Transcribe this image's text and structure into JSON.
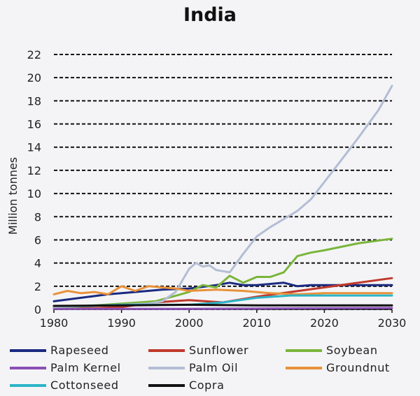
{
  "chart_data": {
    "type": "line",
    "title": "India",
    "ylabel": "Million tonnes",
    "xlabel": "",
    "xlim": [
      1980,
      2030
    ],
    "ylim": [
      0,
      22
    ],
    "xticks": [
      1980,
      1990,
      2000,
      2010,
      2020,
      2030
    ],
    "yticks": [
      0,
      2,
      4,
      6,
      8,
      10,
      12,
      14,
      16,
      18,
      20,
      22
    ],
    "grid": "horizontal dashed",
    "legend_position": "bottom",
    "series": [
      {
        "name": "Rapeseed",
        "color": "#1a2a80",
        "x": [
          1980,
          1984,
          1988,
          1992,
          1996,
          2000,
          2004,
          2006,
          2008,
          2010,
          2014,
          2016,
          2018,
          2020,
          2025,
          2030
        ],
        "y": [
          0.7,
          1.0,
          1.3,
          1.5,
          1.7,
          1.8,
          2.1,
          2.3,
          2.1,
          2.1,
          2.3,
          2.0,
          2.1,
          2.1,
          2.1,
          2.1
        ]
      },
      {
        "name": "Sunflower",
        "color": "#c0392b",
        "x": [
          1980,
          1986,
          1990,
          1995,
          2000,
          2005,
          2010,
          2015,
          2020,
          2025,
          2030
        ],
        "y": [
          0.1,
          0.1,
          0.2,
          0.6,
          0.8,
          0.6,
          1.1,
          1.5,
          1.9,
          2.3,
          2.7
        ]
      },
      {
        "name": "Soybean",
        "color": "#7ab53a",
        "x": [
          1980,
          1985,
          1990,
          1995,
          2000,
          2002,
          2004,
          2006,
          2008,
          2010,
          2012,
          2014,
          2016,
          2018,
          2020,
          2025,
          2030
        ],
        "y": [
          0.1,
          0.3,
          0.5,
          0.7,
          1.5,
          2.1,
          1.9,
          2.9,
          2.3,
          2.8,
          2.8,
          3.2,
          4.6,
          4.9,
          5.1,
          5.7,
          6.1
        ]
      },
      {
        "name": "Palm Kernel",
        "color": "#8a4fb5",
        "x": [
          1980,
          1990,
          2000,
          2010,
          2020,
          2030
        ],
        "y": [
          0.05,
          0.05,
          0.05,
          0.08,
          0.1,
          0.12
        ]
      },
      {
        "name": "Palm Oil",
        "color": "#b3bdd4",
        "x": [
          1980,
          1985,
          1990,
          1994,
          1996,
          1998,
          2000,
          2001,
          2002,
          2003,
          2004,
          2005,
          2006,
          2008,
          2010,
          2012,
          2014,
          2016,
          2018,
          2020,
          2022,
          2025,
          2028,
          2030
        ],
        "y": [
          0.2,
          0.3,
          0.4,
          0.5,
          0.7,
          1.5,
          3.5,
          4.0,
          3.7,
          3.8,
          3.4,
          3.3,
          3.2,
          4.8,
          6.3,
          7.1,
          7.8,
          8.5,
          9.5,
          11.0,
          12.5,
          14.8,
          17.2,
          19.3
        ]
      },
      {
        "name": "Groundnut",
        "color": "#e8923a",
        "x": [
          1980,
          1982,
          1984,
          1986,
          1988,
          1990,
          1992,
          1994,
          1996,
          1998,
          2000,
          2004,
          2008,
          2012,
          2016,
          2020,
          2025,
          2030
        ],
        "y": [
          1.3,
          1.6,
          1.4,
          1.5,
          1.3,
          2.0,
          1.6,
          2.0,
          1.9,
          1.8,
          1.6,
          1.7,
          1.6,
          1.4,
          1.3,
          1.4,
          1.4,
          1.4
        ]
      },
      {
        "name": "Cottonseed",
        "color": "#2bb5c8",
        "x": [
          1980,
          1985,
          1990,
          1995,
          2000,
          2005,
          2010,
          2015,
          2020,
          2025,
          2030
        ],
        "y": [
          0.3,
          0.3,
          0.4,
          0.4,
          0.4,
          0.6,
          1.0,
          1.2,
          1.2,
          1.2,
          1.2
        ]
      },
      {
        "name": "Copra",
        "color": "#111111",
        "x": [
          1980,
          1990,
          2000,
          2010,
          2020,
          2030
        ],
        "y": [
          0.3,
          0.35,
          0.4,
          0.35,
          0.35,
          0.35
        ]
      }
    ]
  }
}
